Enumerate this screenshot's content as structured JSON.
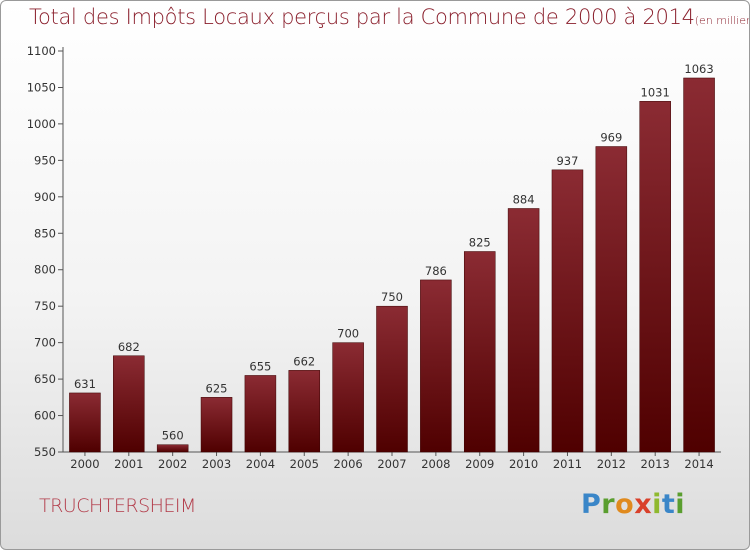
{
  "header": {
    "title": "Total des Impôts Locaux perçus par la Commune de 2000 à 2014",
    "unit": "(en milliers d'€)"
  },
  "footer": {
    "commune": "TRUCHTERSHEIM",
    "logo_letters": [
      "P",
      "r",
      "o",
      "x",
      "i",
      "t",
      "i"
    ]
  },
  "colors": {
    "bar_top": "#8b2b33",
    "bar_bottom": "#4f0000",
    "title": "#8a1f2c"
  },
  "chart_data": {
    "type": "bar",
    "title": "Total des Impôts Locaux perçus par la Commune de 2000 à 2014",
    "ylabel": "en milliers d'€",
    "xlabel": "",
    "categories": [
      "2000",
      "2001",
      "2002",
      "2003",
      "2004",
      "2005",
      "2006",
      "2007",
      "2008",
      "2009",
      "2010",
      "2011",
      "2012",
      "2013",
      "2014"
    ],
    "values": [
      631,
      682,
      560,
      625,
      655,
      662,
      700,
      750,
      786,
      825,
      884,
      937,
      969,
      1031,
      1063
    ],
    "ylim": [
      550,
      1100
    ],
    "yticks": [
      550,
      600,
      650,
      700,
      750,
      800,
      850,
      900,
      950,
      1000,
      1050,
      1100
    ],
    "grid": false
  }
}
